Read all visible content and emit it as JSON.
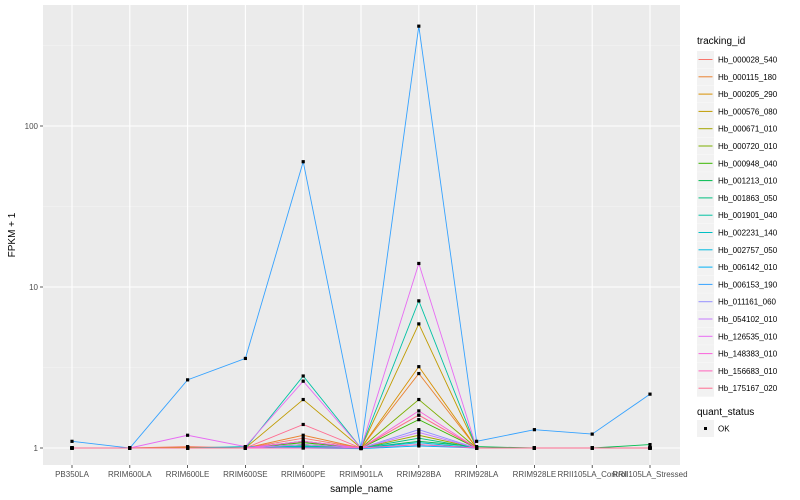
{
  "chart_data": {
    "type": "line",
    "xlabel": "sample_name",
    "ylabel": "FPKM + 1",
    "yscale": "log10",
    "ylim": [
      0.78,
      560
    ],
    "yticks": [
      1,
      10,
      100
    ],
    "ytick_labels": [
      "1",
      "10",
      "100"
    ],
    "grid": true,
    "legend_position": "right",
    "categories": [
      "PB350LA",
      "RRIM600LA",
      "RRIM600LE",
      "RRIM600SE",
      "RRIM600PE",
      "RRIM901LA",
      "RRIM928BA",
      "RRIM928LA",
      "RRIM928LE",
      "RRII105LA_Control",
      "RRII105LA_Stressed"
    ],
    "legend_title": "tracking_id",
    "series": [
      {
        "name": "Hb_000028_540",
        "color": "#F8766D",
        "values": [
          1,
          1,
          1.02,
          1,
          1.15,
          1,
          1.6,
          1,
          1,
          1,
          1
        ]
      },
      {
        "name": "Hb_000115_180",
        "color": "#EA8331",
        "values": [
          1,
          1,
          1,
          1,
          1.2,
          1,
          2.9,
          1,
          1,
          1,
          1
        ]
      },
      {
        "name": "Hb_000205_290",
        "color": "#D89000",
        "values": [
          1,
          1,
          1,
          1,
          1.1,
          1,
          3.2,
          1,
          1,
          1,
          1
        ]
      },
      {
        "name": "Hb_000576_080",
        "color": "#C09B00",
        "values": [
          1,
          1,
          1.01,
          1,
          2.0,
          1,
          5.9,
          1,
          1,
          1,
          1
        ]
      },
      {
        "name": "Hb_000671_010",
        "color": "#A3A500",
        "values": [
          1,
          1,
          1,
          1,
          1.05,
          1,
          1.2,
          1,
          1,
          1,
          1
        ]
      },
      {
        "name": "Hb_000720_010",
        "color": "#7CAE00",
        "values": [
          1,
          1,
          1,
          1,
          1.1,
          1,
          2.0,
          1,
          1,
          1,
          1
        ]
      },
      {
        "name": "Hb_000948_040",
        "color": "#39B600",
        "values": [
          1,
          1,
          1,
          1,
          1.08,
          1,
          1.5,
          1,
          1,
          1,
          1
        ]
      },
      {
        "name": "Hb_001213_010",
        "color": "#00BB4E",
        "values": [
          1,
          1,
          1,
          1,
          1.05,
          1,
          1.1,
          1.02,
          1,
          1,
          1.05
        ]
      },
      {
        "name": "Hb_001863_050",
        "color": "#00BF7D",
        "values": [
          1,
          1,
          1,
          1,
          1.03,
          1,
          1.15,
          1,
          1,
          1,
          1
        ]
      },
      {
        "name": "Hb_001901_040",
        "color": "#00C1A3",
        "values": [
          1,
          1,
          1,
          1,
          2.8,
          1,
          8.2,
          1,
          1,
          1,
          1
        ]
      },
      {
        "name": "Hb_002231_140",
        "color": "#00BFC4",
        "values": [
          1,
          1,
          1,
          1.02,
          1.02,
          1,
          1.05,
          1,
          1,
          1,
          1
        ]
      },
      {
        "name": "Hb_002757_050",
        "color": "#00BAE0",
        "values": [
          1,
          1,
          1,
          1,
          1.01,
          1,
          1.08,
          1,
          1,
          1,
          1
        ]
      },
      {
        "name": "Hb_006142_010",
        "color": "#00B0F6",
        "values": [
          1,
          1,
          1,
          1,
          1,
          0.99,
          1.03,
          1,
          1,
          1,
          1
        ]
      },
      {
        "name": "Hb_006153_190",
        "color": "#35A2FF",
        "values": [
          1.1,
          1,
          2.65,
          3.6,
          60,
          1,
          417,
          1.1,
          1.3,
          1.22,
          2.16
        ]
      },
      {
        "name": "Hb_011161_060",
        "color": "#9590FF",
        "values": [
          1,
          1,
          1,
          1,
          1.1,
          1,
          1.3,
          1,
          1,
          1,
          1
        ]
      },
      {
        "name": "Hb_054102_010",
        "color": "#C77CFF",
        "values": [
          1,
          1,
          1,
          1,
          1.05,
          1,
          1.25,
          1,
          1,
          1,
          1
        ]
      },
      {
        "name": "Hb_126535_010",
        "color": "#E76BF3",
        "values": [
          1,
          1,
          1.2,
          1.02,
          2.6,
          1,
          14,
          1,
          1,
          1,
          1
        ]
      },
      {
        "name": "Hb_148383_010",
        "color": "#FA62DB",
        "values": [
          1,
          1,
          1,
          1,
          1.1,
          1,
          1.7,
          1,
          1,
          1,
          1
        ]
      },
      {
        "name": "Hb_156683_010",
        "color": "#FF62BC",
        "values": [
          1,
          1,
          1,
          1,
          1,
          1,
          1.05,
          1,
          1,
          1,
          1
        ]
      },
      {
        "name": "Hb_175167_020",
        "color": "#FF6C91",
        "values": [
          1,
          1,
          1,
          1,
          1.4,
          1,
          1.6,
          1,
          1,
          1,
          1
        ]
      }
    ],
    "point_legend_title": "quant_status",
    "point_legend": [
      {
        "name": "OK",
        "color": "#000000"
      }
    ]
  }
}
